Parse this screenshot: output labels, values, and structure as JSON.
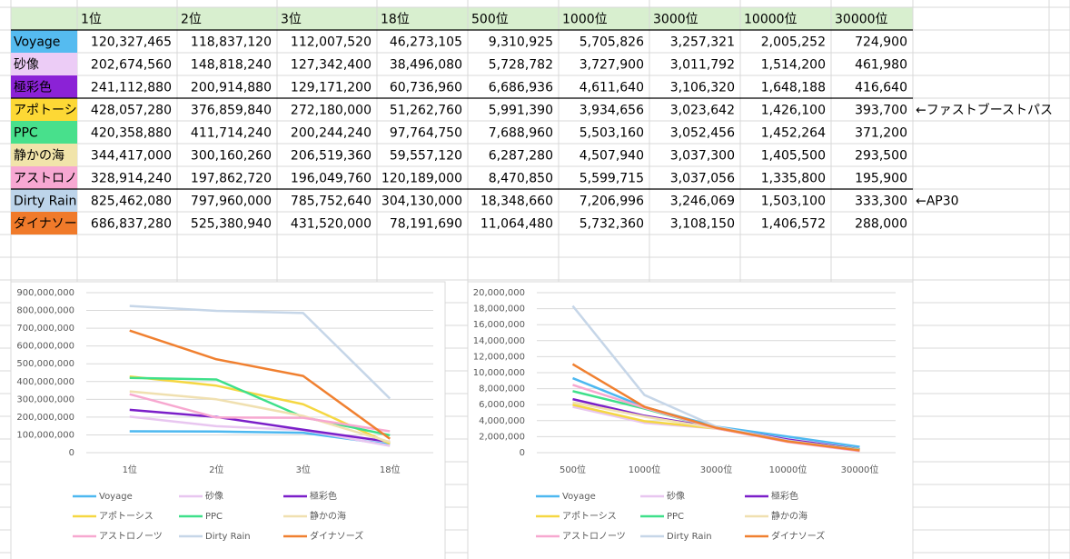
{
  "table": {
    "header": [
      "1位",
      "2位",
      "3位",
      "18位",
      "500位",
      "1000位",
      "3000位",
      "10000位",
      "30000位"
    ],
    "rows": [
      {
        "name": "Voyage",
        "color": "#55bbf0",
        "cells": [
          "120,327,465",
          "118,837,120",
          "112,007,520",
          "46,273,105",
          "9,310,925",
          "5,705,826",
          "3,257,321",
          "2,005,252",
          "724,900"
        ]
      },
      {
        "name": "砂像",
        "color": "#ecccf6",
        "cells": [
          "202,674,560",
          "148,818,240",
          "127,342,400",
          "38,496,080",
          "5,728,782",
          "3,727,900",
          "3,011,792",
          "1,514,200",
          "461,980"
        ]
      },
      {
        "name": "極彩色",
        "color": "#8b22d6",
        "cells": [
          "241,112,880",
          "200,914,880",
          "129,171,200",
          "60,736,960",
          "6,686,936",
          "4,611,640",
          "3,106,320",
          "1,648,188",
          "416,640"
        ]
      },
      {
        "name": "アポトーシス",
        "color": "#fdd835",
        "cells": [
          "428,057,280",
          "376,859,840",
          "272,180,000",
          "51,262,760",
          "5,991,390",
          "3,934,656",
          "3,023,642",
          "1,426,100",
          "393,700"
        ]
      },
      {
        "name": "PPC",
        "color": "#48e08c",
        "cells": [
          "420,358,880",
          "411,714,240",
          "200,244,240",
          "97,764,750",
          "7,688,960",
          "5,503,160",
          "3,052,456",
          "1,452,264",
          "371,200"
        ]
      },
      {
        "name": "静かの海",
        "color": "#f1e4aa",
        "cells": [
          "344,417,000",
          "300,160,260",
          "206,519,360",
          "59,557,120",
          "6,287,280",
          "4,507,940",
          "3,037,300",
          "1,405,500",
          "293,500"
        ]
      },
      {
        "name": "アストロノーツ",
        "color": "#f7a8d2",
        "cells": [
          "328,914,240",
          "197,862,720",
          "196,049,760",
          "120,189,000",
          "8,470,850",
          "5,599,715",
          "3,037,056",
          "1,335,800",
          "195,900"
        ]
      },
      {
        "name": "Dirty Rain",
        "color": "#bdd4ea",
        "cells": [
          "825,462,080",
          "797,960,000",
          "785,752,640",
          "304,130,000",
          "18,348,660",
          "7,206,996",
          "3,246,069",
          "1,503,100",
          "333,300"
        ]
      },
      {
        "name": "ダイナソーズ",
        "color": "#f07a2a",
        "cells": [
          "686,837,280",
          "525,380,940",
          "431,520,000",
          "78,191,690",
          "11,064,480",
          "5,732,360",
          "3,108,150",
          "1,406,572",
          "288,000"
        ]
      }
    ]
  },
  "annotations": [
    "←ファストブーストパス",
    "←AP30"
  ],
  "chart_data": [
    {
      "type": "line",
      "categories": [
        "1位",
        "2位",
        "3位",
        "18位"
      ],
      "ylim": [
        0,
        900000000
      ],
      "yticks": [
        0,
        {
          "value": 100000000,
          "label": "100,000,000"
        },
        {
          "value": 200000000,
          "label": "200,000,000"
        },
        {
          "value": 300000000,
          "label": "300,000,000"
        },
        {
          "value": 400000000,
          "label": "400,000,000"
        },
        {
          "value": 500000000,
          "label": "500,000,000"
        },
        {
          "value": 600000000,
          "label": "600,000,000"
        },
        {
          "value": 700000000,
          "label": "700,000,000"
        },
        {
          "value": 800000000,
          "label": "800,000,000"
        },
        {
          "value": 900000000,
          "label": "900,000,000"
        }
      ],
      "grid": true,
      "series": [
        {
          "name": "Voyage",
          "color": "#4db8f0",
          "values": [
            120327465,
            118837120,
            112007520,
            46273105
          ]
        },
        {
          "name": "砂像",
          "color": "#e8c6f0",
          "values": [
            202674560,
            148818240,
            127342400,
            38496080
          ]
        },
        {
          "name": "極彩色",
          "color": "#7b1fc9",
          "values": [
            241112880,
            200914880,
            129171200,
            60736960
          ]
        },
        {
          "name": "アポトーシス",
          "color": "#f5d742",
          "values": [
            428057280,
            376859840,
            272180000,
            51262760
          ]
        },
        {
          "name": "PPC",
          "color": "#3ee08a",
          "values": [
            420358880,
            411714240,
            200244240,
            97764750
          ]
        },
        {
          "name": "静かの海",
          "color": "#f0e0b0",
          "values": [
            344417000,
            300160260,
            206519360,
            59557120
          ]
        },
        {
          "name": "アストロノーツ",
          "color": "#f7a8d0",
          "values": [
            328914240,
            197862720,
            196049760,
            120189000
          ]
        },
        {
          "name": "Dirty Rain",
          "color": "#c6d6e8",
          "values": [
            825462080,
            797960000,
            785752640,
            304130000
          ]
        },
        {
          "name": "ダイナソーズ",
          "color": "#f08030",
          "values": [
            686837280,
            525380940,
            431520000,
            78191690
          ]
        }
      ]
    },
    {
      "type": "line",
      "categories": [
        "500位",
        "1000位",
        "3000位",
        "10000位",
        "30000位"
      ],
      "ylim": [
        0,
        20000000
      ],
      "yticks": [
        0,
        {
          "value": 2000000,
          "label": "2,000,000"
        },
        {
          "value": 4000000,
          "label": "4,000,000"
        },
        {
          "value": 6000000,
          "label": "6,000,000"
        },
        {
          "value": 8000000,
          "label": "8,000,000"
        },
        {
          "value": 10000000,
          "label": "10,000,000"
        },
        {
          "value": 12000000,
          "label": "12,000,000"
        },
        {
          "value": 14000000,
          "label": "14,000,000"
        },
        {
          "value": 16000000,
          "label": "16,000,000"
        },
        {
          "value": 18000000,
          "label": "18,000,000"
        },
        {
          "value": 20000000,
          "label": "20,000,000"
        }
      ],
      "grid": true,
      "series": [
        {
          "name": "Voyage",
          "color": "#4db8f0",
          "values": [
            9310925,
            5705826,
            3257321,
            2005252,
            724900
          ]
        },
        {
          "name": "砂像",
          "color": "#e8c6f0",
          "values": [
            5728782,
            3727900,
            3011792,
            1514200,
            461980
          ]
        },
        {
          "name": "極彩色",
          "color": "#7b1fc9",
          "values": [
            6686936,
            4611640,
            3106320,
            1648188,
            416640
          ]
        },
        {
          "name": "アポトーシス",
          "color": "#f5d742",
          "values": [
            5991390,
            3934656,
            3023642,
            1426100,
            393700
          ]
        },
        {
          "name": "PPC",
          "color": "#3ee08a",
          "values": [
            7688960,
            5503160,
            3052456,
            1452264,
            371200
          ]
        },
        {
          "name": "静かの海",
          "color": "#f0e0b0",
          "values": [
            6287280,
            4507940,
            3037300,
            1405500,
            293500
          ]
        },
        {
          "name": "アストロノーツ",
          "color": "#f7a8d0",
          "values": [
            8470850,
            5599715,
            3037056,
            1335800,
            195900
          ]
        },
        {
          "name": "Dirty Rain",
          "color": "#c6d6e8",
          "values": [
            18348660,
            7206996,
            3246069,
            1503100,
            333300
          ]
        },
        {
          "name": "ダイナソーズ",
          "color": "#f08030",
          "values": [
            11064480,
            5732360,
            3108150,
            1406572,
            288000
          ]
        }
      ]
    }
  ]
}
